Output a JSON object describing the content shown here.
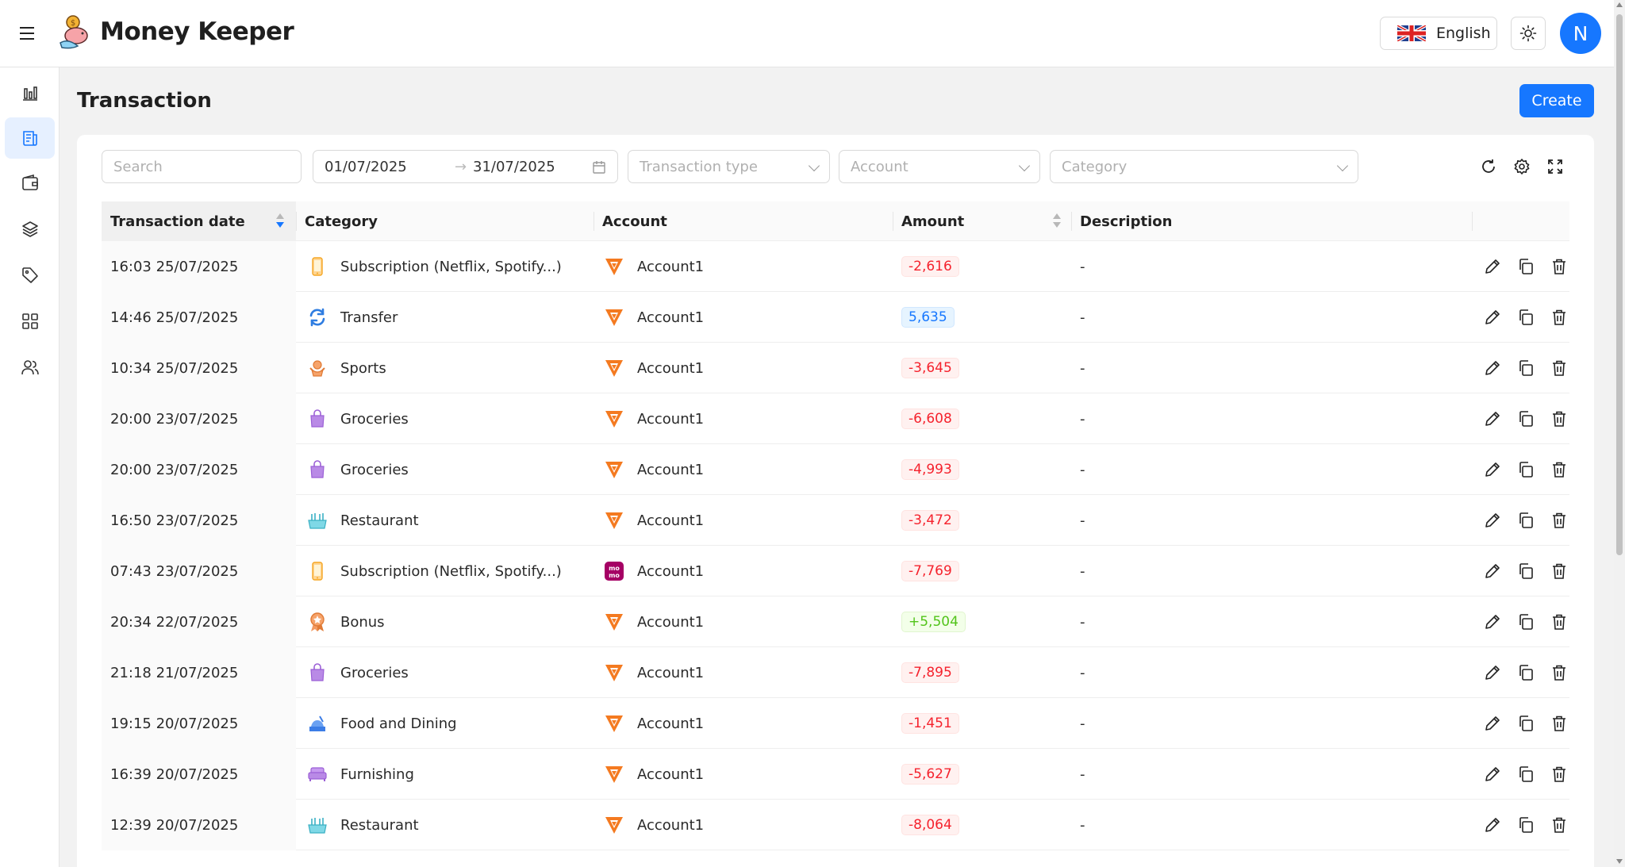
{
  "app": {
    "title": "Money Keeper"
  },
  "header": {
    "language_label": "English",
    "avatar_initial": "N",
    "brand_color": "#1677ff"
  },
  "sidebar": {
    "items": [
      {
        "icon": "bar-chart-icon",
        "active": false
      },
      {
        "icon": "transaction-scroll-icon",
        "active": true
      },
      {
        "icon": "wallet-icon",
        "active": false
      },
      {
        "icon": "layers-icon",
        "active": false
      },
      {
        "icon": "tag-icon",
        "active": false
      },
      {
        "icon": "apps-grid-icon",
        "active": false
      },
      {
        "icon": "users-icon",
        "active": false
      }
    ]
  },
  "page": {
    "title": "Transaction",
    "create_label": "Create"
  },
  "filters": {
    "search_placeholder": "Search",
    "date_from": "01/07/2025",
    "date_to": "31/07/2025",
    "transaction_type_placeholder": "Transaction type",
    "account_placeholder": "Account",
    "category_placeholder": "Category"
  },
  "table": {
    "headers": {
      "date": "Transaction date",
      "category": "Category",
      "account": "Account",
      "amount": "Amount",
      "description": "Description"
    },
    "rows": [
      {
        "date": "16:03 25/07/2025",
        "category": "Subscription (Netflix, Spotify...)",
        "cat_icon": "phone-icon",
        "account": "Account1",
        "acc_icon": "account-logo-orange",
        "amount": "-2,616",
        "kind": "neg",
        "description": "-"
      },
      {
        "date": "14:46 25/07/2025",
        "category": "Transfer",
        "cat_icon": "transfer-icon",
        "account": "Account1",
        "acc_icon": "account-logo-orange",
        "amount": "5,635",
        "kind": "xfer",
        "description": "-"
      },
      {
        "date": "10:34 25/07/2025",
        "category": "Sports",
        "cat_icon": "sports-icon",
        "account": "Account1",
        "acc_icon": "account-logo-orange",
        "amount": "-3,645",
        "kind": "neg",
        "description": "-"
      },
      {
        "date": "20:00 23/07/2025",
        "category": "Groceries",
        "cat_icon": "shopping-bag-icon",
        "account": "Account1",
        "acc_icon": "account-logo-orange",
        "amount": "-6,608",
        "kind": "neg",
        "description": "-"
      },
      {
        "date": "20:00 23/07/2025",
        "category": "Groceries",
        "cat_icon": "shopping-bag-icon",
        "account": "Account1",
        "acc_icon": "account-logo-orange",
        "amount": "-4,993",
        "kind": "neg",
        "description": "-"
      },
      {
        "date": "16:50 23/07/2025",
        "category": "Restaurant",
        "cat_icon": "restaurant-icon",
        "account": "Account1",
        "acc_icon": "account-logo-orange",
        "amount": "-3,472",
        "kind": "neg",
        "description": "-"
      },
      {
        "date": "07:43 23/07/2025",
        "category": "Subscription (Netflix, Spotify...)",
        "cat_icon": "phone-icon",
        "account": "Account1",
        "acc_icon": "account-logo-momo",
        "amount": "-7,769",
        "kind": "neg",
        "description": "-"
      },
      {
        "date": "20:34 22/07/2025",
        "category": "Bonus",
        "cat_icon": "bonus-medal-icon",
        "account": "Account1",
        "acc_icon": "account-logo-orange",
        "amount": "+5,504",
        "kind": "pos",
        "description": "-"
      },
      {
        "date": "21:18 21/07/2025",
        "category": "Groceries",
        "cat_icon": "shopping-bag-icon",
        "account": "Account1",
        "acc_icon": "account-logo-orange",
        "amount": "-7,895",
        "kind": "neg",
        "description": "-"
      },
      {
        "date": "19:15 20/07/2025",
        "category": "Food and Dining",
        "cat_icon": "food-dining-icon",
        "account": "Account1",
        "acc_icon": "account-logo-orange",
        "amount": "-1,451",
        "kind": "neg",
        "description": "-"
      },
      {
        "date": "16:39 20/07/2025",
        "category": "Furnishing",
        "cat_icon": "sofa-icon",
        "account": "Account1",
        "acc_icon": "account-logo-orange",
        "amount": "-5,627",
        "kind": "neg",
        "description": "-"
      },
      {
        "date": "12:39 20/07/2025",
        "category": "Restaurant",
        "cat_icon": "restaurant-icon",
        "account": "Account1",
        "acc_icon": "account-logo-orange",
        "amount": "-8,064",
        "kind": "neg",
        "description": "-"
      }
    ]
  }
}
